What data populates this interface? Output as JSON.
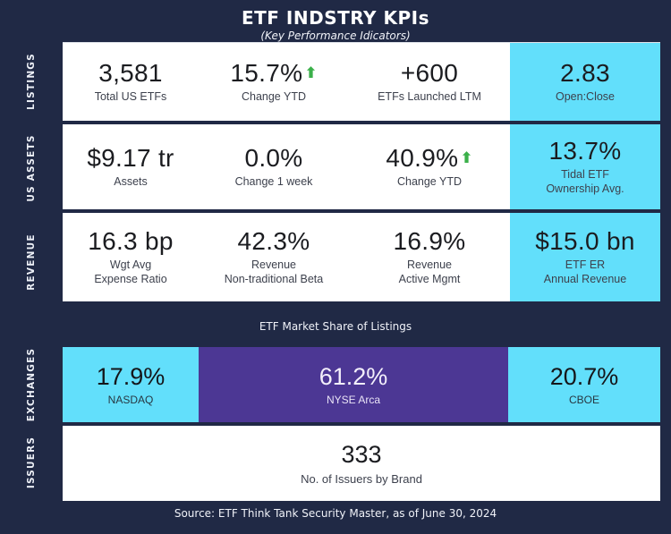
{
  "header": {
    "title": "ETF INDSTRY KPIs",
    "subtitle": "(Key Performance Idicators)"
  },
  "kpi_rows": [
    {
      "group": "LISTINGS",
      "cells": [
        {
          "value": "3,581",
          "label": "Total US ETFs",
          "highlight": false,
          "arrow": false
        },
        {
          "value": "15.7%",
          "label": "Change YTD",
          "highlight": false,
          "arrow": true
        },
        {
          "value": "+600",
          "label": "ETFs Launched LTM",
          "highlight": false,
          "arrow": false
        },
        {
          "value": "2.83",
          "label": "Open:Close",
          "highlight": true,
          "arrow": false
        }
      ]
    },
    {
      "group": "US ASSETS",
      "cells": [
        {
          "value": "$9.17 tr",
          "label": "Assets",
          "highlight": false,
          "arrow": false
        },
        {
          "value": "0.0%",
          "label": "Change 1 week",
          "highlight": false,
          "arrow": false
        },
        {
          "value": "40.9%",
          "label": "Change YTD",
          "highlight": false,
          "arrow": true
        },
        {
          "value": "13.7%",
          "label": "Tidal ETF\nOwnership Avg.",
          "highlight": true,
          "arrow": false
        }
      ]
    },
    {
      "group": "REVENUE",
      "cells": [
        {
          "value": "16.3 bp",
          "label": "Wgt Avg\nExpense Ratio",
          "highlight": false,
          "arrow": false
        },
        {
          "value": "42.3%",
          "label": "Revenue\nNon-traditional Beta",
          "highlight": false,
          "arrow": false
        },
        {
          "value": "16.9%",
          "label": "Revenue\nActive Mgmt",
          "highlight": false,
          "arrow": false
        },
        {
          "value": "$15.0 bn",
          "label": "ETF ER\nAnnual Revenue",
          "highlight": true,
          "arrow": false
        }
      ]
    }
  ],
  "market_share": {
    "group": "EXCHANGES",
    "title": "ETF Market Share of Listings",
    "segments": [
      {
        "value": "17.9%",
        "label": "NASDAQ",
        "color_style": "cyan"
      },
      {
        "value": "61.2%",
        "label": "NYSE Arca",
        "color_style": "purple"
      },
      {
        "value": "20.7%",
        "label": "CBOE",
        "color_style": "cyan"
      }
    ]
  },
  "issuers": {
    "group": "ISSUERS",
    "value": "333",
    "label": "No. of Issuers by Brand"
  },
  "footer": {
    "source": "Source: ETF Think Tank Security Master, as of June 30, 2024"
  },
  "icons": {
    "up_arrow": "⬆"
  },
  "colors": {
    "background": "#202945",
    "card": "#ffffff",
    "highlight_cyan": "#62dffb",
    "highlight_purple": "#4c3794",
    "arrow_green": "#3bb04a",
    "value_text": "#1b1c20",
    "label_text": "#3d414d"
  },
  "chart_data": [
    {
      "type": "table",
      "title": "ETF INDSTRY KPIs (Key Performance Idicators)",
      "rows": [
        {
          "group": "LISTINGS",
          "metrics": [
            {
              "label": "Total US ETFs",
              "value": "3,581"
            },
            {
              "label": "Change YTD",
              "value": "15.7%",
              "direction": "up"
            },
            {
              "label": "ETFs Launched LTM",
              "value": "+600"
            },
            {
              "label": "Open:Close",
              "value": "2.83"
            }
          ]
        },
        {
          "group": "US ASSETS",
          "metrics": [
            {
              "label": "Assets",
              "value": "$9.17 tr"
            },
            {
              "label": "Change 1 week",
              "value": "0.0%"
            },
            {
              "label": "Change YTD",
              "value": "40.9%",
              "direction": "up"
            },
            {
              "label": "Tidal ETF Ownership Avg.",
              "value": "13.7%"
            }
          ]
        },
        {
          "group": "REVENUE",
          "metrics": [
            {
              "label": "Wgt Avg Expense Ratio",
              "value": "16.3 bp"
            },
            {
              "label": "Revenue Non-traditional Beta",
              "value": "42.3%"
            },
            {
              "label": "Revenue Active Mgmt",
              "value": "16.9%"
            },
            {
              "label": "ETF ER Annual Revenue",
              "value": "$15.0 bn"
            }
          ]
        },
        {
          "group": "ISSUERS",
          "metrics": [
            {
              "label": "No. of Issuers by Brand",
              "value": "333"
            }
          ]
        }
      ]
    },
    {
      "type": "bar",
      "title": "ETF Market Share of Listings",
      "categories": [
        "NASDAQ",
        "NYSE Arca",
        "CBOE"
      ],
      "values": [
        17.9,
        61.2,
        20.7
      ],
      "unit": "%"
    }
  ]
}
